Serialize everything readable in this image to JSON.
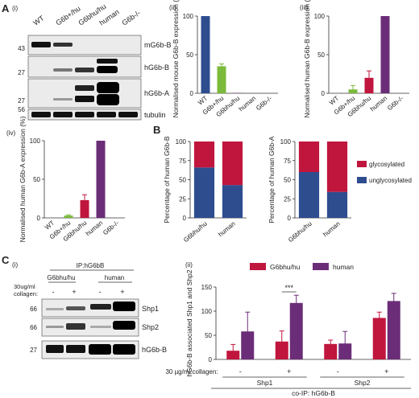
{
  "panels": {
    "A": "A",
    "B": "B",
    "C": "C",
    "Ai": "(i)",
    "Aii": "(ii)",
    "Aiii": "(iii)",
    "Aiv": "(iv)",
    "Ci": "(i)",
    "Cii": "(ii)"
  },
  "colors": {
    "wt": "#2e4d8f",
    "het": "#7cba3b",
    "human": "#6b2d78",
    "homo": "#c0163d",
    "unglyco": "#2e4d8f",
    "glyco": "#c0163d"
  },
  "blot_a": {
    "lanes": [
      "WT",
      "G6b+/hu",
      "G6bhu/hu",
      "human",
      "G6b-/-"
    ],
    "bands": [
      "mG6b-B",
      "hG6b-B",
      "hG6b-A",
      "tubulin"
    ],
    "mw": [
      "43",
      "27",
      "27",
      "56"
    ]
  },
  "blot_c": {
    "ip": "IP:hG6bB",
    "groups": [
      "G6bhu/hu",
      "human"
    ],
    "collagen_label_1": "30ug/ml",
    "collagen_label_2": "collagen:",
    "signs": [
      "-",
      "+",
      "-",
      "+"
    ],
    "bands": [
      "Shp1",
      "Shp2",
      "hG6b-B"
    ],
    "mw": [
      "66",
      "66",
      "27"
    ]
  },
  "chart_data": [
    {
      "id": "Aii",
      "type": "bar",
      "categories": [
        "WT",
        "G6b+/hu",
        "G6bhu/hu",
        "human",
        "G6b-/-"
      ],
      "values": [
        100,
        35,
        0.5,
        0,
        0
      ],
      "errors": [
        0,
        3,
        0,
        0,
        0
      ],
      "ylabel": "Normalised mouse G6b-B expression (%)",
      "ylim": [
        0,
        100
      ],
      "yticks": [
        "0",
        "50",
        "100"
      ]
    },
    {
      "id": "Aiii",
      "type": "bar",
      "categories": [
        "WT",
        "G6b+/hu",
        "G6bhu/hu",
        "human",
        "G6b-/-"
      ],
      "values": [
        0,
        5,
        20,
        100,
        0
      ],
      "errors": [
        0,
        5,
        9,
        0,
        0
      ],
      "ylabel": "Normalised human G6b-B expression (%)",
      "ylim": [
        0,
        100
      ],
      "yticks": [
        "0",
        "50",
        "100"
      ]
    },
    {
      "id": "Aiv",
      "type": "bar",
      "categories": [
        "WT",
        "G6b+/hu",
        "G6bhu/hu",
        "human",
        "G6b-/-"
      ],
      "values": [
        0,
        3,
        23,
        100,
        0
      ],
      "errors": [
        0,
        1,
        7,
        0,
        0
      ],
      "ylabel": "Normalised human G6b-A expression (%)",
      "ylim": [
        0,
        100
      ],
      "yticks": [
        "0",
        "50",
        "100"
      ]
    },
    {
      "id": "B1",
      "type": "bar",
      "categories": [
        "G6bhu/hu",
        "human"
      ],
      "series": [
        {
          "name": "unglycosylated",
          "values": [
            66,
            43
          ]
        },
        {
          "name": "glycosylated",
          "values": [
            34,
            57
          ]
        }
      ],
      "ylabel": "Percentage of human G6b-B",
      "ylim": [
        0,
        100
      ],
      "yticks": [
        "0",
        "25",
        "50",
        "75",
        "100"
      ]
    },
    {
      "id": "B2",
      "type": "bar",
      "categories": [
        "G6bhu/hu",
        "human"
      ],
      "series": [
        {
          "name": "unglycosylated",
          "values": [
            60,
            34
          ]
        },
        {
          "name": "glycosylated",
          "values": [
            40,
            66
          ]
        }
      ],
      "ylabel": "Percentage of human G6b-A",
      "ylim": [
        0,
        100
      ],
      "yticks": [
        "0",
        "25",
        "50",
        "75",
        "100"
      ]
    },
    {
      "id": "Cii",
      "type": "bar",
      "categories": [
        "Shp1 -",
        "Shp1 +",
        "Shp2 -",
        "Shp2 +"
      ],
      "series": [
        {
          "name": "G6bhu/hu",
          "values": [
            18,
            37,
            32,
            86
          ],
          "errors": [
            13,
            22,
            8,
            12
          ]
        },
        {
          "name": "human",
          "values": [
            58,
            117,
            33,
            121
          ],
          "errors": [
            40,
            16,
            25,
            16
          ]
        }
      ],
      "ylabel": "hG6b-B associated Shp1 and Shp2",
      "ylim": [
        0,
        150
      ],
      "yticks": [
        "0",
        "50",
        "100",
        "150"
      ],
      "collagen_label": "30 µg/ml collagen:",
      "signs": [
        "-",
        "+",
        "-",
        "+"
      ],
      "groups": [
        "Shp1",
        "Shp2"
      ],
      "footer": "co-IP: hG6b-B",
      "significance": "***"
    }
  ]
}
